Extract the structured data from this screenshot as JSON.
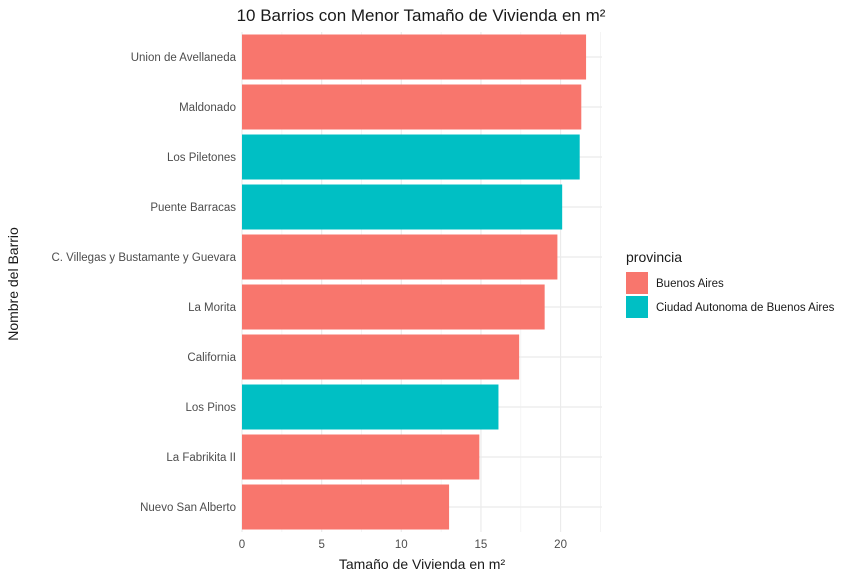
{
  "chart_data": {
    "type": "bar",
    "orientation": "horizontal",
    "title": "10 Barrios con Menor Tamaño de Vivienda en m²",
    "xlabel": "Tamaño de Vivienda en m²",
    "ylabel": "Nombre del Barrio",
    "xlim": [
      0,
      22.6
    ],
    "x_ticks": [
      0,
      5,
      10,
      15,
      20
    ],
    "grid": true,
    "legend": {
      "title": "provincia",
      "placement": "right",
      "entries": [
        {
          "label": "Buenos Aires",
          "color": "#F8766D"
        },
        {
          "label": "Ciudad Autonoma de Buenos Aires",
          "color": "#00BFC4"
        }
      ]
    },
    "categories": [
      "Union de Avellaneda",
      "Maldonado",
      "Los Piletones",
      "Puente Barracas",
      "C. Villegas y Bustamante y Guevara",
      "La Morita",
      "California",
      "Los Pinos",
      "La Fabrikita II",
      "Nuevo San Alberto"
    ],
    "values": [
      21.6,
      21.3,
      21.2,
      20.1,
      19.8,
      19.0,
      17.4,
      16.1,
      14.9,
      13.0
    ],
    "provincia": [
      "Buenos Aires",
      "Buenos Aires",
      "Ciudad Autonoma de Buenos Aires",
      "Ciudad Autonoma de Buenos Aires",
      "Buenos Aires",
      "Buenos Aires",
      "Buenos Aires",
      "Ciudad Autonoma de Buenos Aires",
      "Buenos Aires",
      "Buenos Aires"
    ]
  }
}
